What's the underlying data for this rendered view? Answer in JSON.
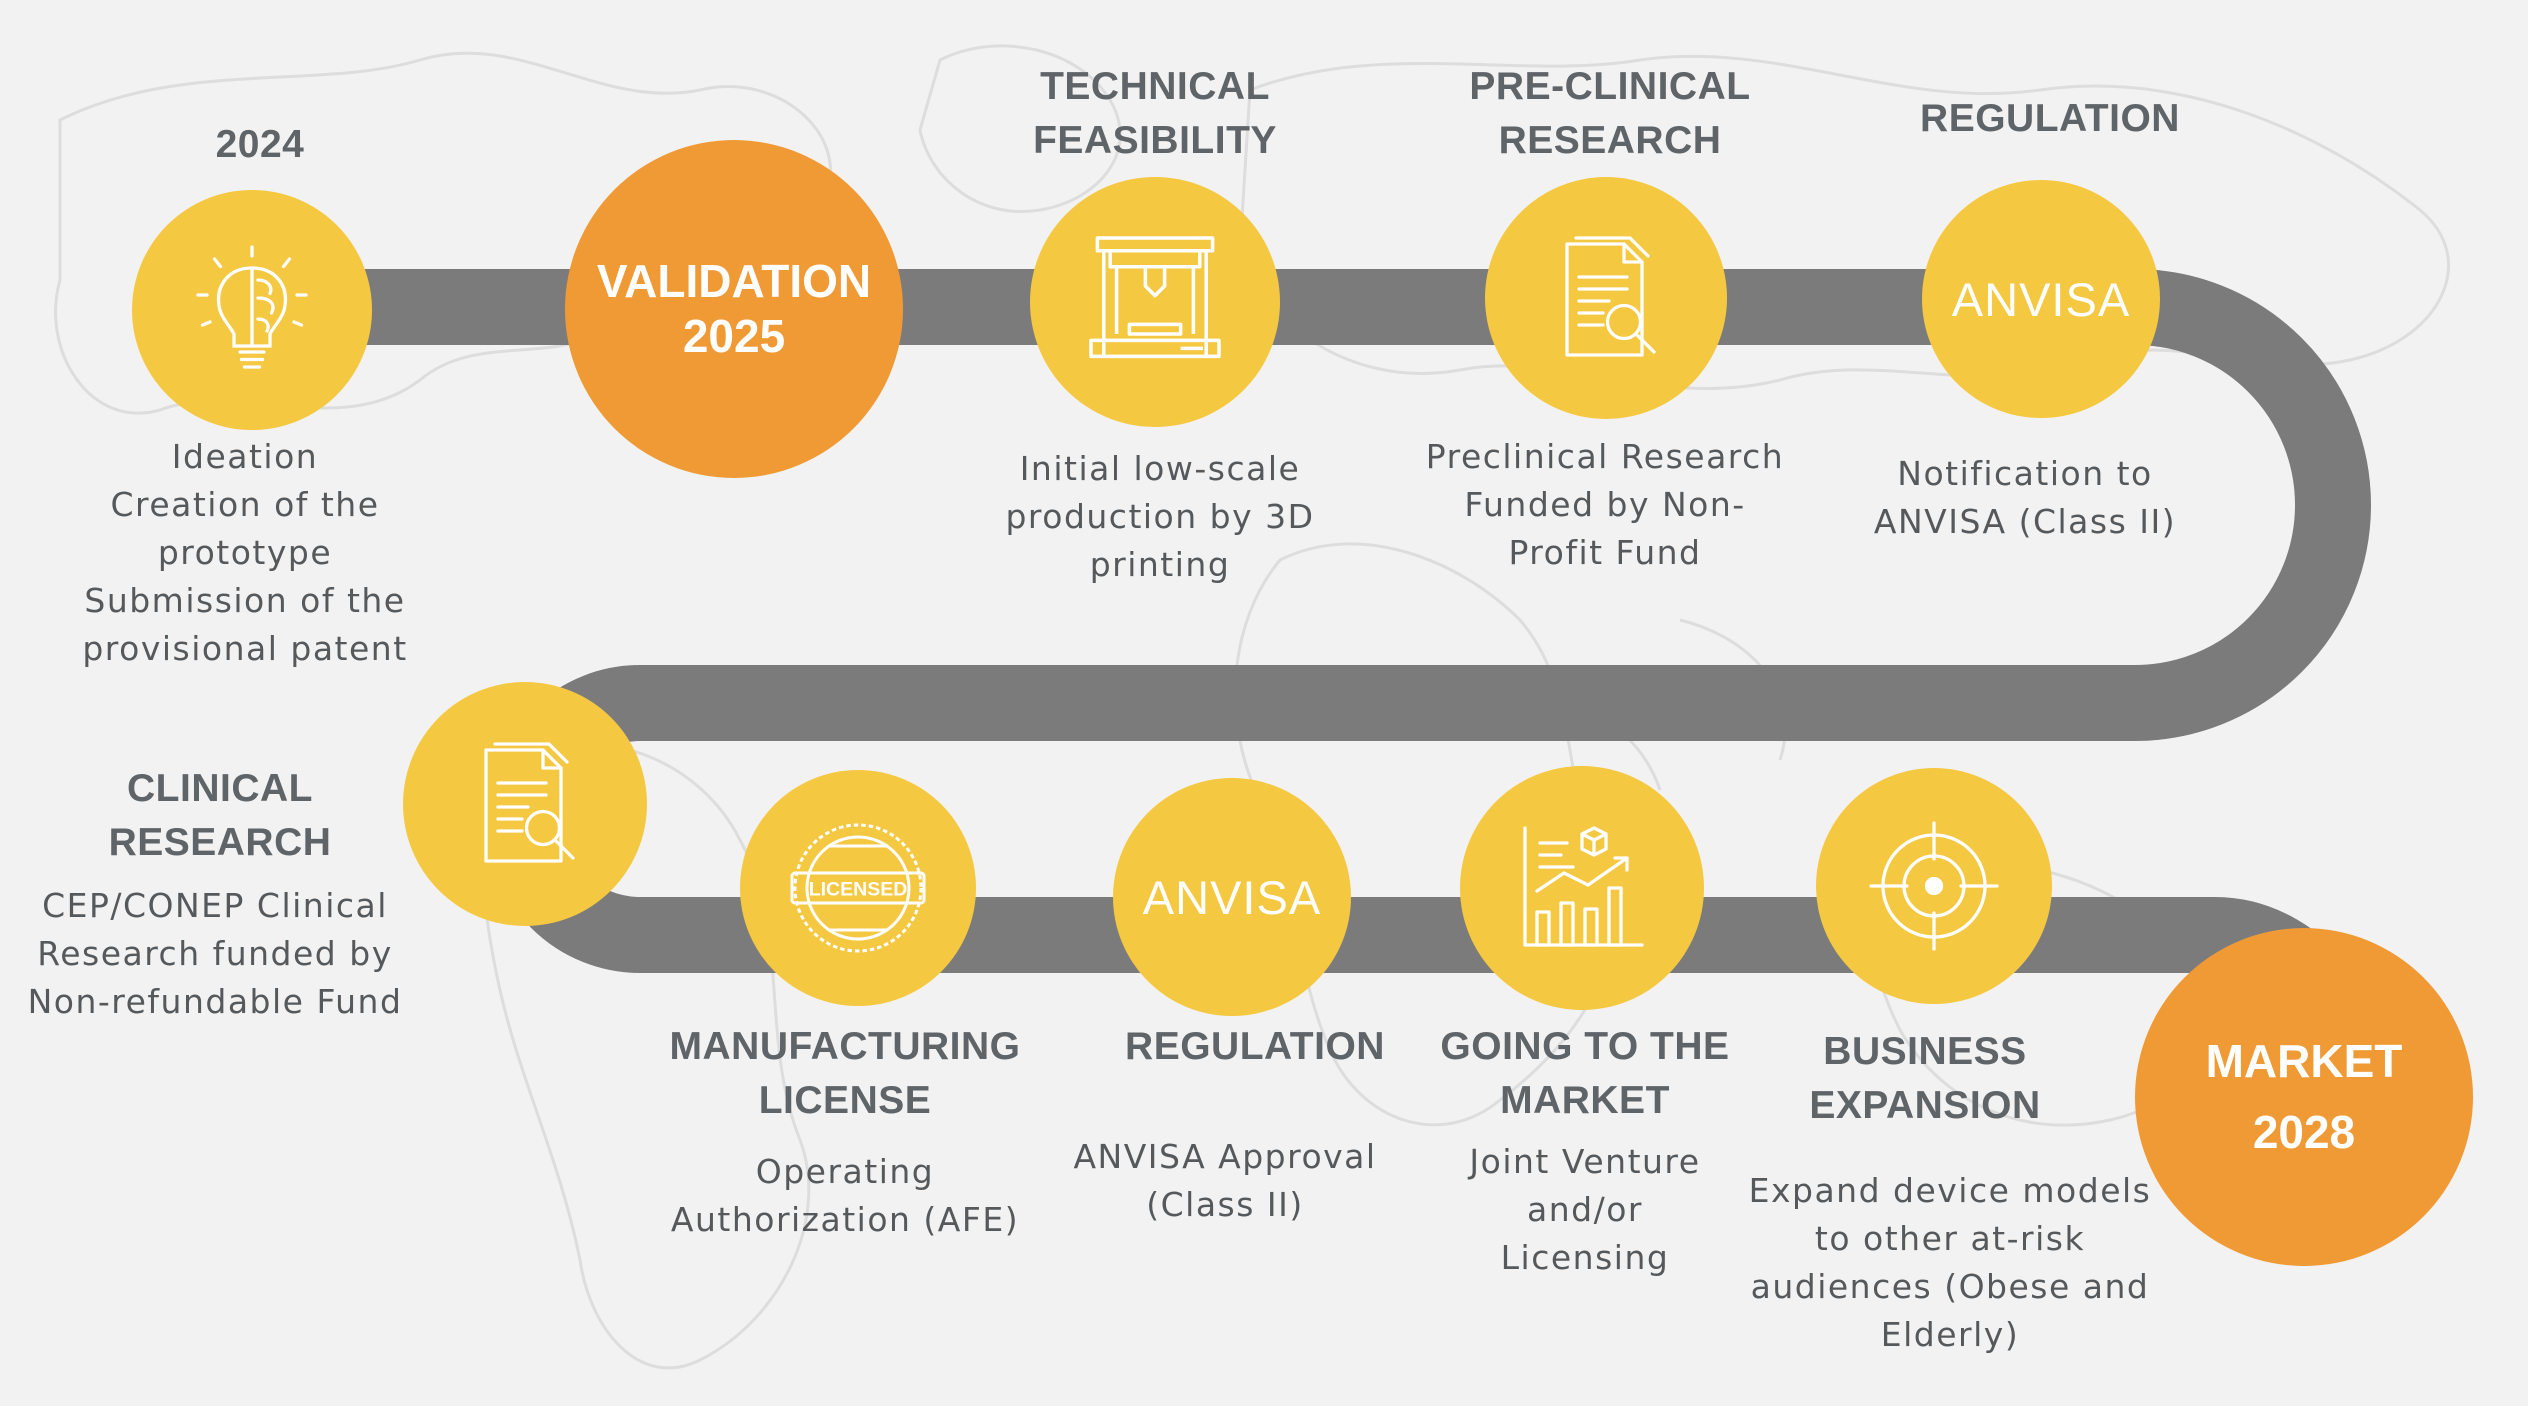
{
  "colors": {
    "background": "#f2f2f2",
    "road": "#7b7b7b",
    "yellow": "#f5c842",
    "orange": "#f09a36",
    "text": "#5f6468"
  },
  "milestones": [
    {
      "title": "2024",
      "desc": "Ideation\nCreation of the\nprototype\nSubmission of the\nprovisional patent",
      "icon": "lightbulb-brain-icon"
    },
    {
      "label_line1": "VALIDATION",
      "label_line2": "2025"
    },
    {
      "title": "TECHNICAL\nFEASIBILITY",
      "desc": "Initial low-scale\nproduction by 3D\nprinting",
      "icon": "3d-printer-icon"
    },
    {
      "title": "PRE-CLINICAL\nRESEARCH",
      "desc": "Preclinical Research\nFunded by Non-\nProfit Fund",
      "icon": "document-search-icon"
    },
    {
      "title": "REGULATION",
      "circle_text": "ANVISA",
      "desc": "Notification to\nANVISA (Class II)"
    },
    {
      "title": "CLINICAL\nRESEARCH",
      "desc": "CEP/CONEP Clinical\nResearch funded by\nNon-refundable Fund",
      "icon": "document-search-icon"
    },
    {
      "title": "MANUFACTURING\nLICENSE",
      "desc": "Operating\nAuthorization (AFE)",
      "icon": "licensed-stamp-icon"
    },
    {
      "title": "REGULATION",
      "circle_text": "ANVISA",
      "desc": "ANVISA Approval\n(Class II)"
    },
    {
      "title": "GOING TO THE\nMARKET",
      "desc": "Joint Venture\nand/or\nLicensing",
      "icon": "bar-chart-growth-icon"
    },
    {
      "title": "BUSINESS\nEXPANSION",
      "desc": "Expand device models\nto other at-risk\naudiences (Obese and\nElderly)",
      "icon": "target-crosshair-icon"
    },
    {
      "label_line1": "MARKET",
      "label_line2": "2028"
    }
  ]
}
